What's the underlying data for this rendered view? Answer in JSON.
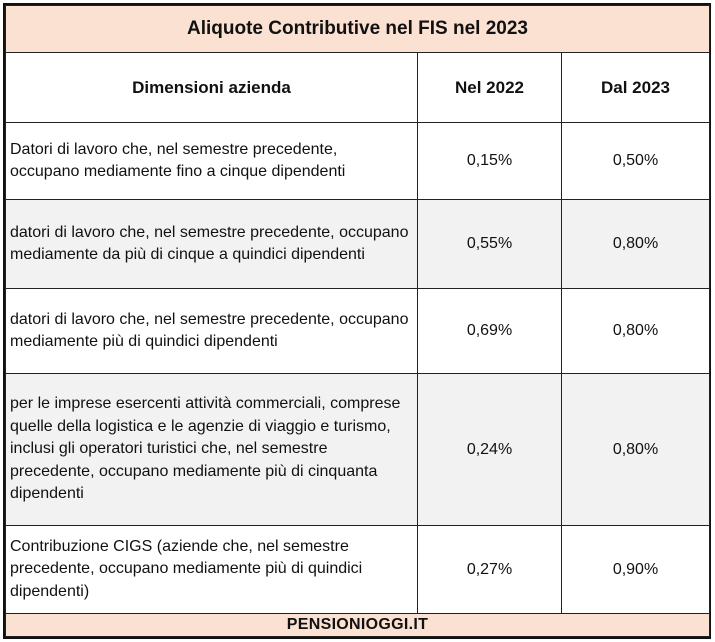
{
  "title": "Aliquote Contributive nel FIS nel 2023",
  "columns": {
    "dimension": "Dimensioni azienda",
    "year_2022": "Nel 2022",
    "year_2023": "Dal 2023"
  },
  "rows": [
    {
      "desc": "Datori di lavoro che, nel semestre precedente, occupano mediamente fino a cinque dipendenti",
      "v2022": "0,15%",
      "v2023": "0,50%"
    },
    {
      "desc": "datori di lavoro che, nel semestre precedente, occupano mediamente da più di cinque a quindici dipendenti",
      "v2022": "0,55%",
      "v2023": "0,80%"
    },
    {
      "desc": "datori di lavoro che, nel semestre precedente, occupano mediamente più di quindici dipendenti",
      "v2022": "0,69%",
      "v2023": "0,80%"
    },
    {
      "desc": "per le imprese esercenti attività commerciali, comprese quelle della logistica e le agenzie di viaggio e turismo, inclusi gli operatori turistici che, nel semestre precedente, occupano mediamente più di cinquanta dipendenti",
      "v2022": "0,24%",
      "v2023": "0,80%"
    },
    {
      "desc": "Contribuzione CIGS (aziende che, nel semestre precedente, occupano mediamente più di quindici dipendenti)",
      "v2022": "0,27%",
      "v2023": "0,90%"
    }
  ],
  "footer": "PENSIONIOGGI.IT",
  "colors": {
    "header_fill": "#fbe1d2",
    "row_alt_fill": "#f2f2f2",
    "border": "#222222"
  }
}
